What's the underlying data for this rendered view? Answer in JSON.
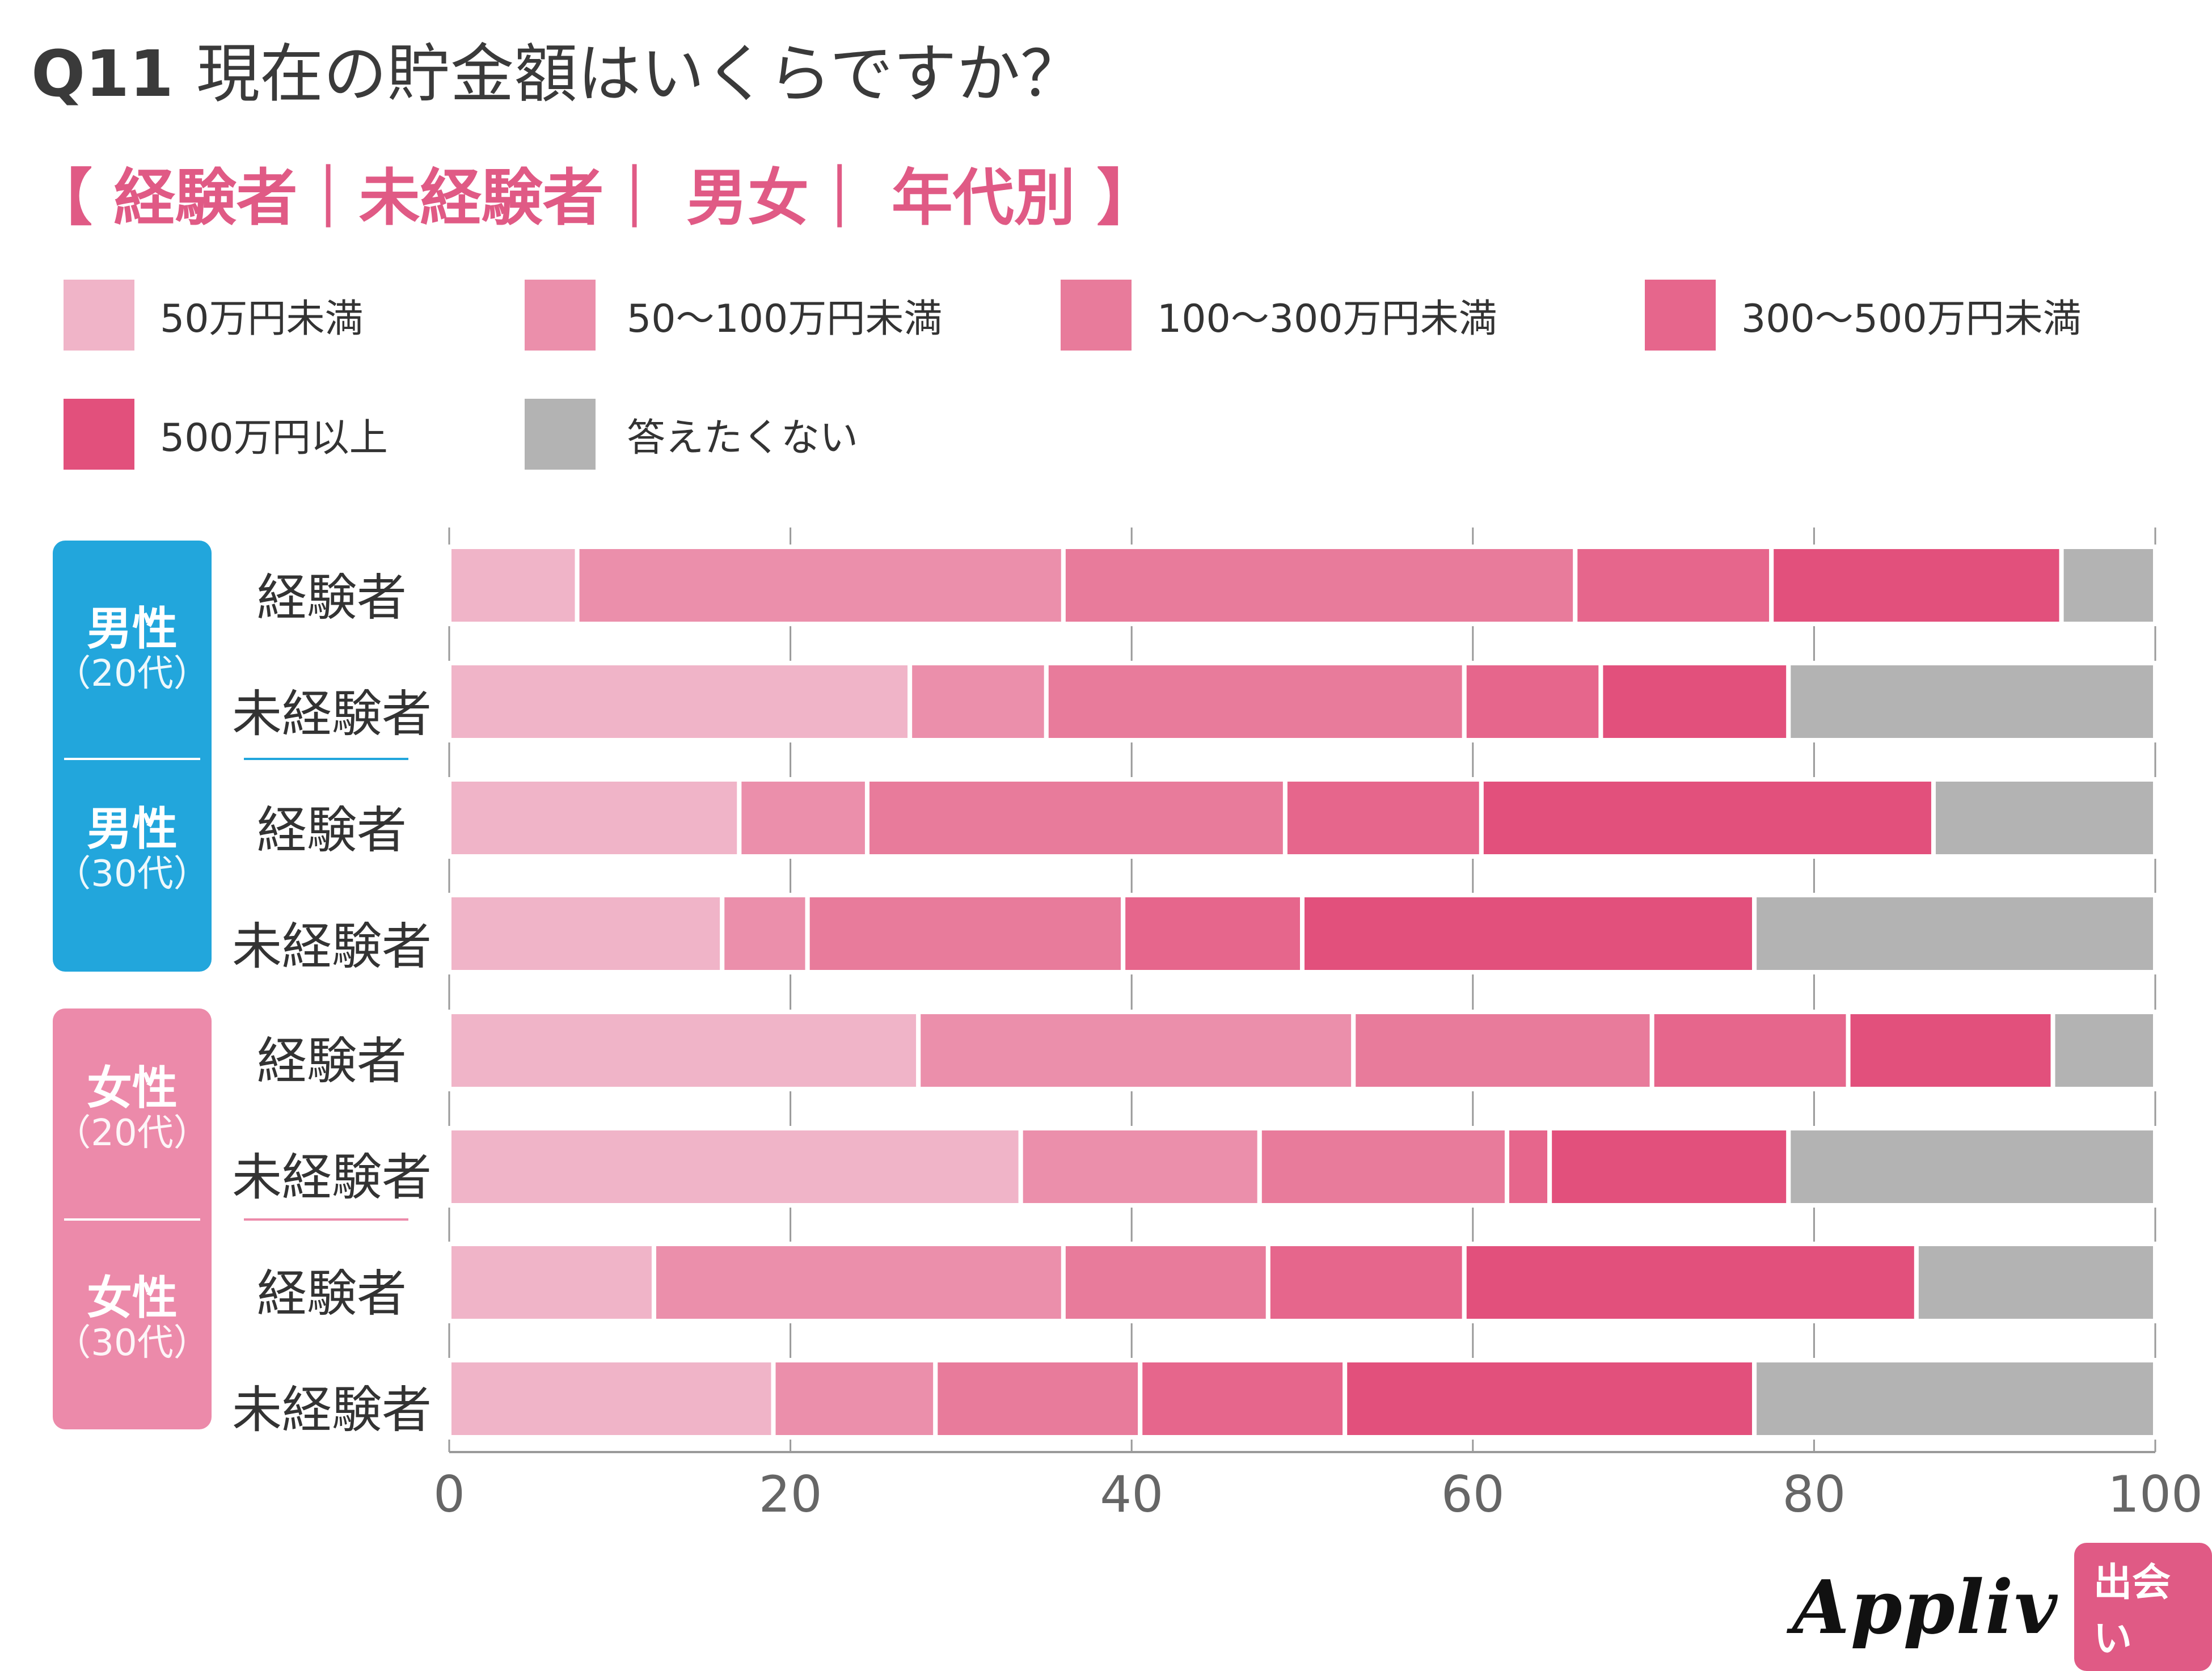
{
  "header": {
    "q_number": "Q11",
    "question": "現在の貯金額はいくらですか？",
    "subtitle": "【 経験者｜未経験者｜ 男女｜ 年代別 】"
  },
  "colors": {
    "title": "#3a3a3a",
    "subtitle": "#e05a85",
    "male_group": "#22a6dc",
    "female_group": "#ec8aaa"
  },
  "legend": [
    {
      "label": "50万円未満",
      "color": "#f0b4c8"
    },
    {
      "label": "50〜100万円未満",
      "color": "#eb8fab"
    },
    {
      "label": "100〜300万円未満",
      "color": "#e87b9b"
    },
    {
      "label": "300〜500万円未満",
      "color": "#e6668c"
    },
    {
      "label": "500万円以上",
      "color": "#e2507c"
    },
    {
      "label": "答えたくない",
      "color": "#b3b3b3"
    }
  ],
  "groups": [
    {
      "line1": "男性",
      "line2": "（20代）"
    },
    {
      "line1": "男性",
      "line2": "（30代）"
    },
    {
      "line1": "女性",
      "line2": "（20代）"
    },
    {
      "line1": "女性",
      "line2": "（30代）"
    }
  ],
  "chart_data": {
    "type": "bar",
    "orientation": "horizontal",
    "stacked": true,
    "categories": [
      "男性（20代）経験者",
      "男性（20代）未経験者",
      "男性（30代）経験者",
      "男性（30代）未経験者",
      "女性（20代）経験者",
      "女性（20代）未経験者",
      "女性（30代）経験者",
      "女性（30代）未経験者"
    ],
    "row_labels": [
      "経験者",
      "未経験者",
      "経験者",
      "未経験者",
      "経験者",
      "未経験者",
      "経験者",
      "未経験者"
    ],
    "series": [
      {
        "name": "50万円未満",
        "values": [
          7.5,
          27.0,
          17.0,
          16.0,
          27.5,
          33.5,
          12.0,
          19.0
        ]
      },
      {
        "name": "50〜100万円未満",
        "values": [
          28.5,
          8.0,
          7.5,
          5.0,
          25.5,
          14.0,
          24.0,
          9.5
        ]
      },
      {
        "name": "100〜300万円未満",
        "values": [
          30.0,
          24.5,
          24.5,
          18.5,
          17.5,
          14.5,
          12.0,
          12.0
        ]
      },
      {
        "name": "300〜500万円未満",
        "values": [
          11.5,
          8.0,
          11.5,
          10.5,
          11.5,
          2.5,
          11.5,
          12.0
        ]
      },
      {
        "name": "500万円以上",
        "values": [
          17.0,
          11.0,
          26.5,
          26.5,
          12.0,
          14.0,
          26.5,
          24.0
        ]
      },
      {
        "name": "答えたくない",
        "values": [
          5.5,
          21.5,
          13.0,
          23.5,
          6.0,
          21.5,
          14.0,
          23.5
        ]
      }
    ],
    "x_ticks": [
      0,
      20,
      40,
      60,
      80,
      100
    ],
    "xlim": [
      0,
      100
    ],
    "grid": true
  },
  "brand": {
    "logo": "Appliv",
    "badge": "出会い"
  }
}
